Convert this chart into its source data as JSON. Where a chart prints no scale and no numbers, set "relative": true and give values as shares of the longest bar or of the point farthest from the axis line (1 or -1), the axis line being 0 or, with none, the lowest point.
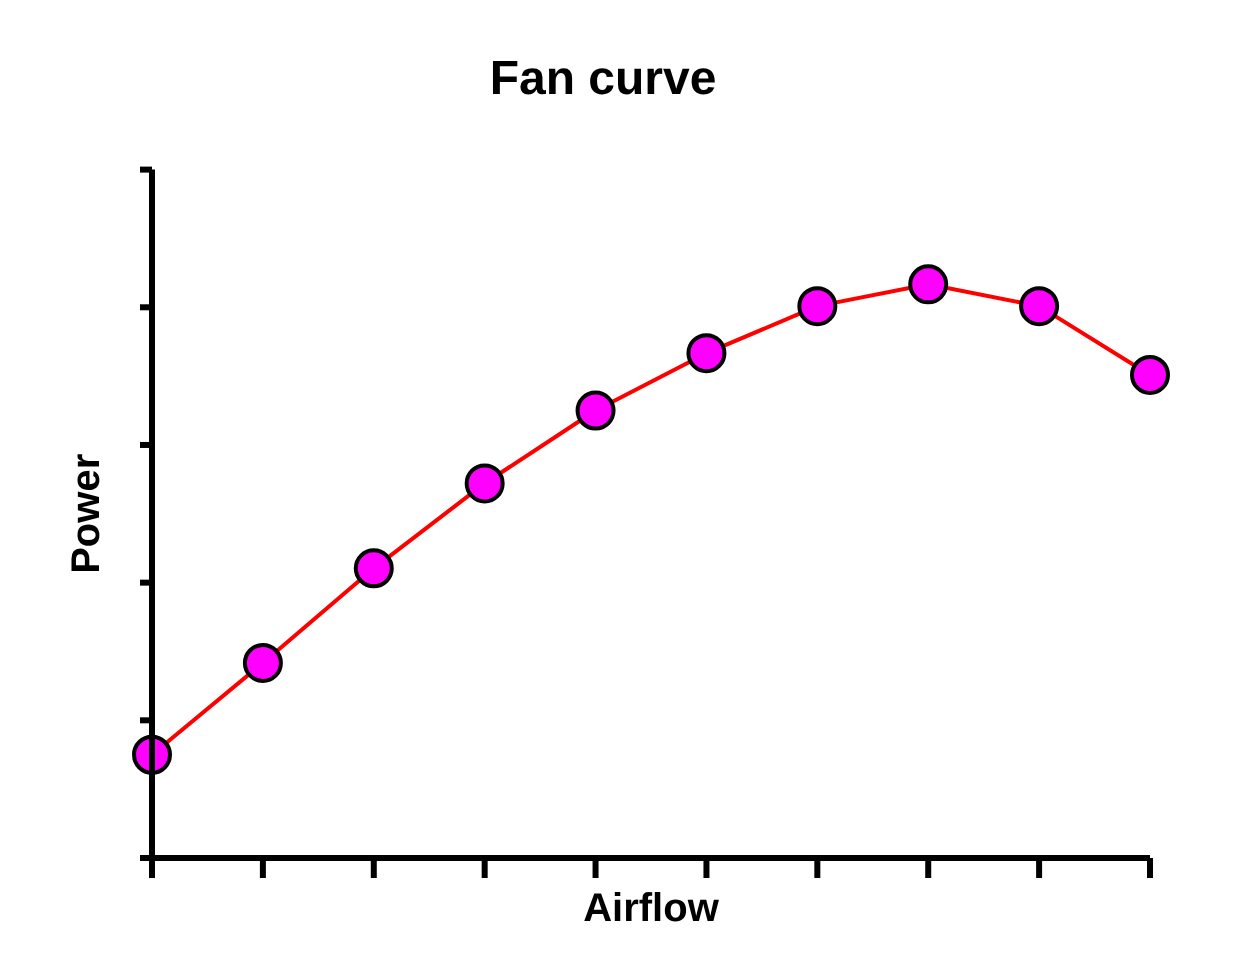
{
  "chart_data": {
    "type": "line",
    "title": "Fan curve",
    "xlabel": "Airflow",
    "ylabel": "Power",
    "relative": true,
    "categories": [
      null,
      null,
      null,
      null,
      null,
      null,
      null,
      null,
      null,
      null
    ],
    "marker": "circle",
    "grid": false,
    "legend": false,
    "series": [
      {
        "color": "#ff0000",
        "colors": [
          "#ff00ff",
          "#ff00ff",
          "#ff00ff",
          "#ff00ff",
          "#ff00ff",
          "#ff00ff",
          "#ff00ff",
          "#ff00ff",
          "#ff00ff",
          "#ff00ff"
        ],
        "values": [
          0.18,
          0.34,
          0.505,
          0.653,
          0.78,
          0.88,
          0.962,
          1,
          0.962,
          0.842
        ]
      }
    ]
  }
}
